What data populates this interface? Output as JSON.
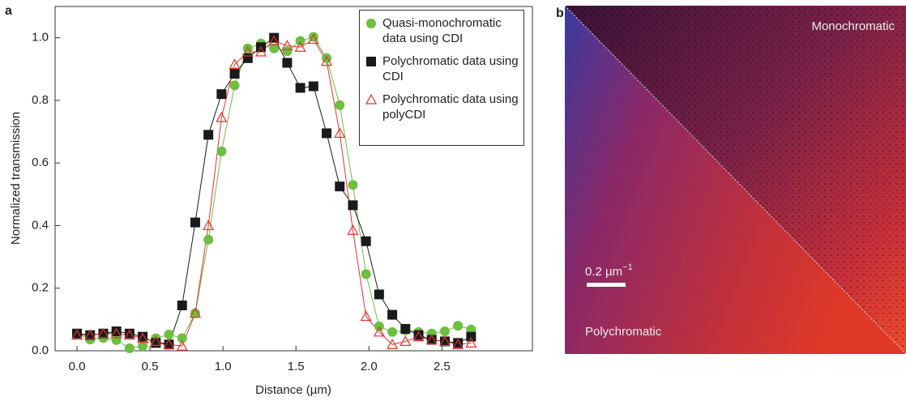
{
  "chart_data": {
    "type": "line",
    "panel_label": "a",
    "x_label": "Distance (µm)",
    "y_label": "Normalized transmission",
    "x": [
      0,
      0.09,
      0.18,
      0.27,
      0.36,
      0.45,
      0.54,
      0.63,
      0.72,
      0.81,
      0.9,
      0.99,
      1.08,
      1.17,
      1.26,
      1.35,
      1.44,
      1.53,
      1.62,
      1.71,
      1.8,
      1.89,
      1.98,
      2.07,
      2.16,
      2.25,
      2.34,
      2.43,
      2.52,
      2.61,
      2.7
    ],
    "series": [
      {
        "name": "Quasi-monochromatic data using CDI",
        "color": "#6cbf3f",
        "marker": "circle",
        "values": [
          0.055,
          0.036,
          0.041,
          0.034,
          0.008,
          0.015,
          0.04,
          0.052,
          0.04,
          0.12,
          0.355,
          0.637,
          0.848,
          0.966,
          0.982,
          0.966,
          0.957,
          0.99,
          1.003,
          0.935,
          0.785,
          0.53,
          0.245,
          0.078,
          0.06,
          0.065,
          0.06,
          0.055,
          0.062,
          0.08,
          0.068
        ]
      },
      {
        "name": "Polychromatic data using CDI",
        "color": "#1a1a1a",
        "marker": "square",
        "values": [
          0.055,
          0.05,
          0.055,
          0.062,
          0.055,
          0.045,
          0.025,
          0.02,
          0.145,
          0.41,
          0.69,
          0.82,
          0.885,
          0.935,
          0.97,
          1.0,
          0.92,
          0.84,
          0.845,
          0.695,
          0.525,
          0.465,
          0.35,
          0.18,
          0.115,
          0.07,
          0.05,
          0.035,
          0.03,
          0.025,
          0.045
        ]
      },
      {
        "name": "Polychromatic data using polyCDI",
        "color": "#e8312f",
        "marker": "triangle",
        "values": [
          0.05,
          0.05,
          0.055,
          0.055,
          0.05,
          0.04,
          0.03,
          0.02,
          0.015,
          0.12,
          0.4,
          0.745,
          0.915,
          0.955,
          0.955,
          0.99,
          0.975,
          0.97,
          0.995,
          0.925,
          0.695,
          0.385,
          0.11,
          0.06,
          0.02,
          0.03,
          0.045,
          0.035,
          0.03,
          0.02,
          0.025
        ]
      }
    ],
    "xlim": [
      -0.15,
      3.12
    ],
    "ylim": [
      0,
      1.1
    ],
    "xticks": [
      {
        "value": 0,
        "label": "0.0"
      },
      {
        "value": 0.5,
        "label": "0.5"
      },
      {
        "value": 1,
        "label": "1.0"
      },
      {
        "value": 1.5,
        "label": "1.5"
      },
      {
        "value": 2,
        "label": "2.0"
      },
      {
        "value": 2.5,
        "label": "2.5"
      }
    ],
    "yticks": [
      {
        "value": 0,
        "label": "0.0"
      },
      {
        "value": 0.2,
        "label": "0.2"
      },
      {
        "value": 0.4,
        "label": "0.4"
      },
      {
        "value": 0.6,
        "label": "0.6"
      },
      {
        "value": 0.8,
        "label": "0.8"
      },
      {
        "value": 1,
        "label": "1.0"
      }
    ],
    "legend": "top-right"
  },
  "image_panel": {
    "panel_label": "b",
    "upper_label": "Monochromatic",
    "lower_label": "Polychromatic",
    "scale_bar": "0.2 µm",
    "scale_bar_exponent": "−1"
  }
}
